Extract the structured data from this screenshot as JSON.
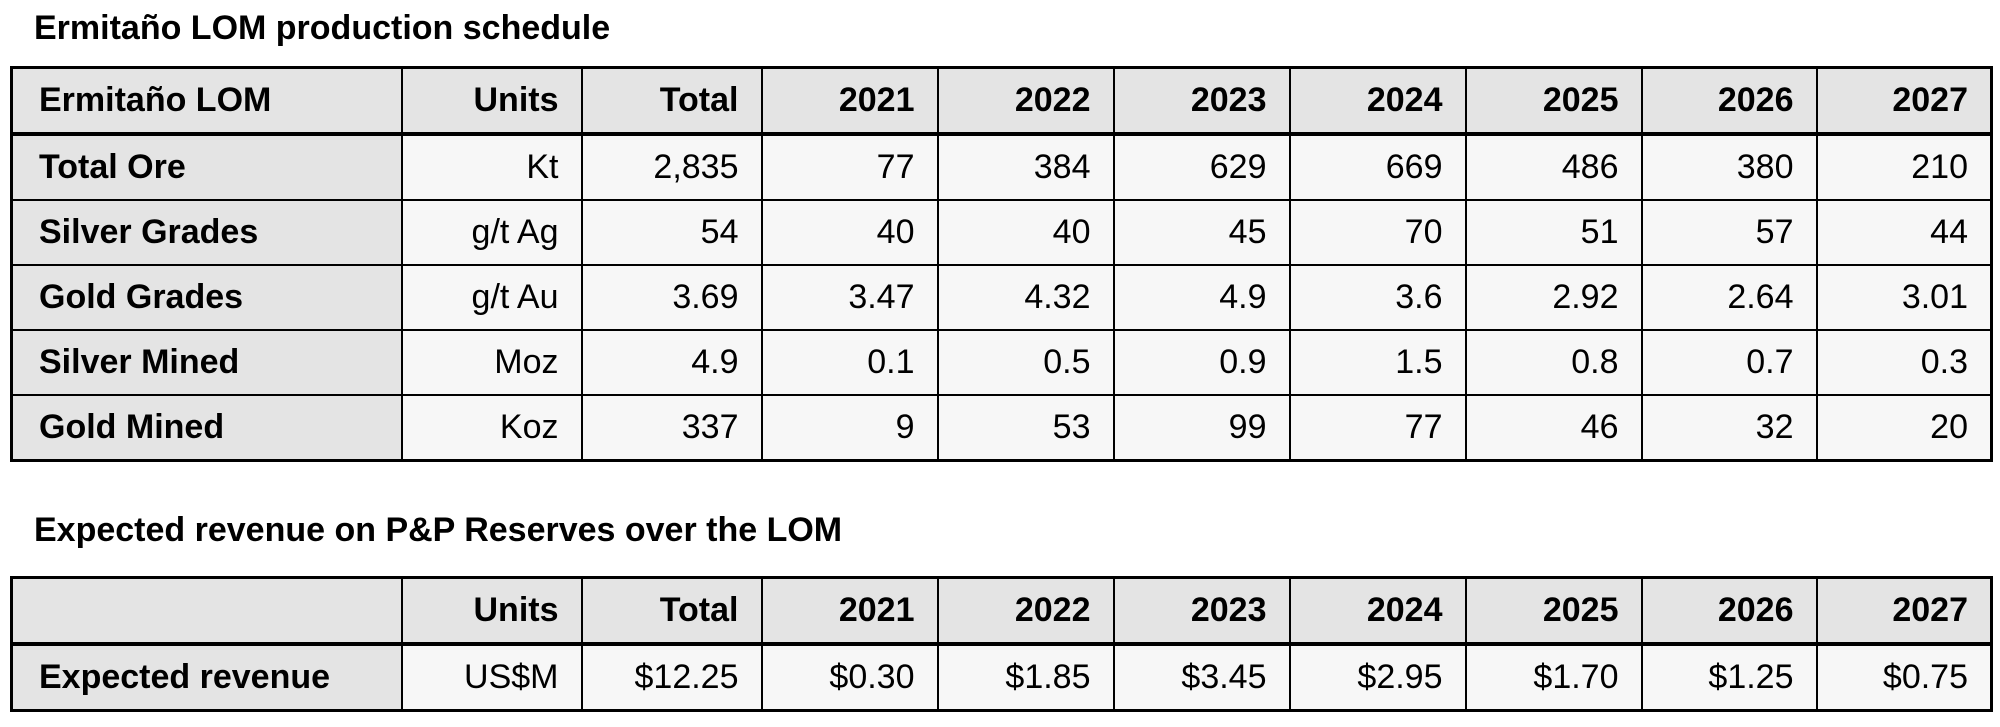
{
  "colors": {
    "header_bg": "#e4e4e4",
    "label_bg": "#e4e4e4",
    "cell_bg": "#f7f7f7",
    "border": "#000000",
    "text": "#000000",
    "page_bg": "#ffffff"
  },
  "tables": [
    {
      "title": "Ermitaño LOM production schedule",
      "header": [
        "Ermitaño LOM",
        "Units",
        "Total",
        "2021",
        "2022",
        "2023",
        "2024",
        "2025",
        "2026",
        "2027"
      ],
      "rows": [
        [
          "Total Ore",
          "Kt",
          "2,835",
          "77",
          "384",
          "629",
          "669",
          "486",
          "380",
          "210"
        ],
        [
          "Silver Grades",
          "g/t Ag",
          "54",
          "40",
          "40",
          "45",
          "70",
          "51",
          "57",
          "44"
        ],
        [
          "Gold Grades",
          "g/t Au",
          "3.69",
          "3.47",
          "4.32",
          "4.9",
          "3.6",
          "2.92",
          "2.64",
          "3.01"
        ],
        [
          "Silver Mined",
          "Moz",
          "4.9",
          "0.1",
          "0.5",
          "0.9",
          "1.5",
          "0.8",
          "0.7",
          "0.3"
        ],
        [
          "Gold Mined",
          "Koz",
          "337",
          "9",
          "53",
          "99",
          "77",
          "46",
          "32",
          "20"
        ]
      ]
    },
    {
      "title": "Expected revenue on P&P Reserves over the LOM",
      "header": [
        "",
        "Units",
        "Total",
        "2021",
        "2022",
        "2023",
        "2024",
        "2025",
        "2026",
        "2027"
      ],
      "rows": [
        [
          "Expected revenue",
          "US$M",
          "$12.25",
          "$0.30",
          "$1.85",
          "$3.45",
          "$2.95",
          "$1.70",
          "$1.25",
          "$0.75"
        ]
      ]
    }
  ]
}
